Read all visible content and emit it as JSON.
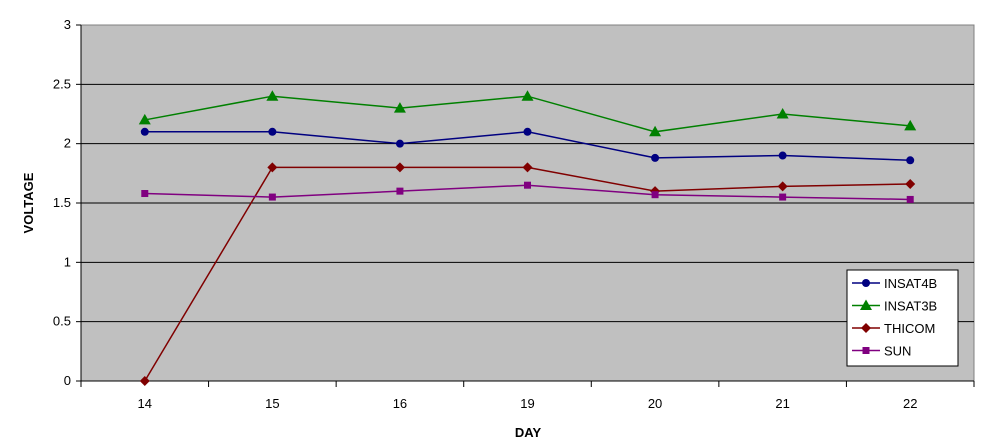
{
  "chart_data": {
    "type": "line",
    "title": "",
    "xlabel": "DAY",
    "ylabel": "VOLTAGE",
    "categories": [
      "14",
      "15",
      "16",
      "19",
      "20",
      "21",
      "22"
    ],
    "ylim": [
      0,
      3
    ],
    "yticks": [
      "0",
      "0.5",
      "1",
      "1.5",
      "2",
      "2.5",
      "3"
    ],
    "grid": true,
    "legend_position": "bottom-right",
    "background_color": "#c0c0c0",
    "series": [
      {
        "name": "INSAT4B",
        "color": "#000080",
        "marker": "circle",
        "values": [
          2.1,
          2.1,
          2.0,
          2.1,
          1.88,
          1.9,
          1.86
        ]
      },
      {
        "name": "INSAT3B",
        "color": "#008000",
        "marker": "triangle",
        "values": [
          2.2,
          2.4,
          2.3,
          2.4,
          2.1,
          2.25,
          2.15
        ]
      },
      {
        "name": "THICOM",
        "color": "#800000",
        "marker": "diamond",
        "values": [
          0.0,
          1.8,
          1.8,
          1.8,
          1.6,
          1.64,
          1.66
        ]
      },
      {
        "name": "SUN",
        "color": "#800080",
        "marker": "square",
        "values": [
          1.58,
          1.55,
          1.6,
          1.65,
          1.57,
          1.55,
          1.53
        ]
      }
    ]
  }
}
